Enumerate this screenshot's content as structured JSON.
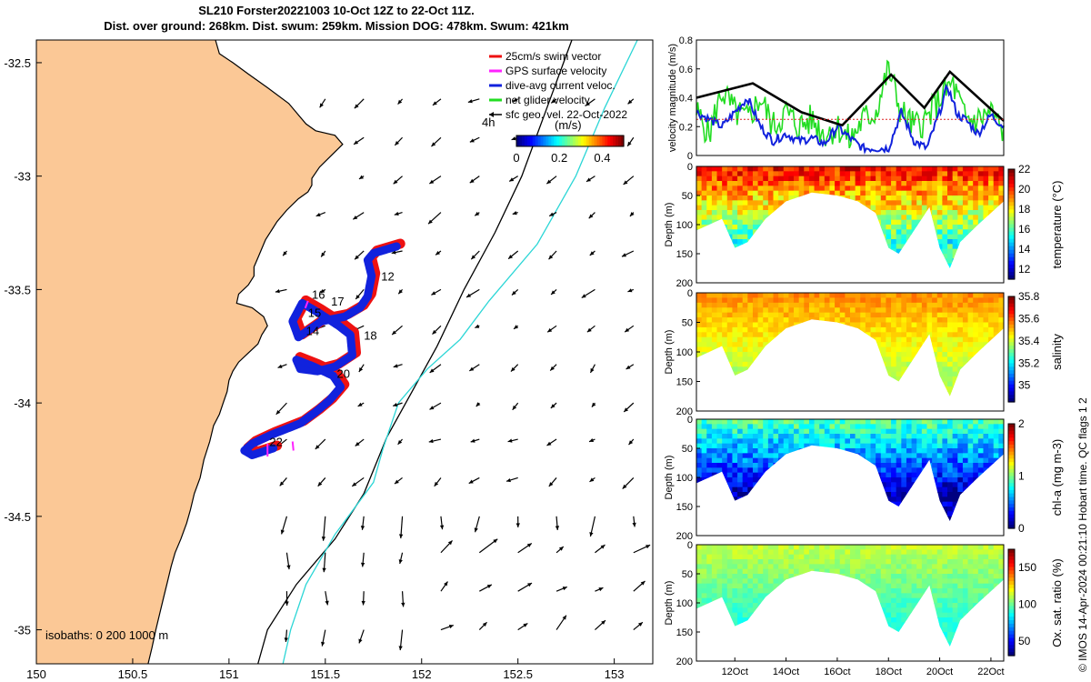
{
  "title": {
    "line1": "SL210 Forster20221003 10-Oct 12Z to 22-Oct 11Z.",
    "line2": "Dist. over ground: 268km. Dist. swum: 259km. Mission DOG: 478km. Swum: 421km"
  },
  "credit": "© IMOS 14-Apr-2024 00:21:10 Hobart time. QC flags 1  2",
  "colors": {
    "land": "#FBC896",
    "coast": "#000000",
    "isobath200": "#000000",
    "isobath1000": "#2BD6D6",
    "track_red": "#EE1111",
    "track_blue": "#1122DD",
    "net_green": "#22DD22",
    "gps_magenta": "#FF22FF",
    "vel_black": "#000000",
    "vel_red": "#DD2222"
  },
  "chart_data": [
    {
      "type": "map",
      "xlim": [
        150,
        153.2
      ],
      "ylim": [
        -35.15,
        -32.4
      ],
      "xticks": [
        150,
        150.5,
        151,
        151.5,
        152,
        152.5,
        153
      ],
      "xtick_labels": [
        "150",
        "150.5",
        "151",
        "151.5",
        "152",
        "152.5",
        "153"
      ],
      "yticks": [
        -32.5,
        -33,
        -33.5,
        -34,
        -34.5,
        -35
      ],
      "ytick_labels": [
        "-32.5",
        "-33",
        "-33.5",
        "-34",
        "-34.5",
        "-35"
      ],
      "legend": {
        "position": "top-right",
        "items": [
          {
            "label": "25cm/s swim vector",
            "color": "#EE1111",
            "marker": "line"
          },
          {
            "label": "GPS surface velocity",
            "color": "#FF22FF",
            "marker": "line"
          },
          {
            "label": "dive-avg current veloc.",
            "color": "#1122DD",
            "marker": "line"
          },
          {
            "label": "net glider velocity",
            "color": "#22DD22",
            "marker": "line"
          },
          {
            "label": "sfc geo. vel. 22-Oct-2022",
            "color": "#000000",
            "marker": "arrow"
          }
        ]
      },
      "colorbar": {
        "label": "(m/s)",
        "ticks": [
          "0",
          "0.2",
          "0.4"
        ],
        "range": [
          0,
          0.5
        ],
        "corner_label": "4h"
      },
      "isobaths_label": "isobaths: 0   200  1000 m",
      "track": [
        [
          151.87,
          -33.31
        ],
        [
          151.75,
          -33.34
        ],
        [
          151.72,
          -33.37
        ],
        [
          151.74,
          -33.44
        ],
        [
          151.72,
          -33.53
        ],
        [
          151.68,
          -33.58
        ],
        [
          151.6,
          -33.62
        ],
        [
          151.48,
          -33.64
        ],
        [
          151.36,
          -33.71
        ],
        [
          151.33,
          -33.64
        ],
        [
          151.38,
          -33.56
        ],
        [
          151.46,
          -33.6
        ],
        [
          151.57,
          -33.66
        ],
        [
          151.63,
          -33.7
        ],
        [
          151.64,
          -33.79
        ],
        [
          151.55,
          -33.84
        ],
        [
          151.46,
          -33.86
        ],
        [
          151.37,
          -33.85
        ],
        [
          151.35,
          -33.81
        ],
        [
          151.44,
          -33.84
        ],
        [
          151.54,
          -33.88
        ],
        [
          151.58,
          -33.93
        ],
        [
          151.52,
          -33.99
        ],
        [
          151.45,
          -34.04
        ],
        [
          151.37,
          -34.09
        ],
        [
          151.22,
          -34.14
        ],
        [
          151.12,
          -34.18
        ],
        [
          151.08,
          -34.21
        ],
        [
          151.12,
          -34.23
        ],
        [
          151.23,
          -34.2
        ]
      ],
      "day_labels": [
        {
          "text": "12",
          "lon": 151.79,
          "lat": -33.46
        },
        {
          "text": "16",
          "lon": 151.43,
          "lat": -33.54
        },
        {
          "text": "17",
          "lon": 151.53,
          "lat": -33.57
        },
        {
          "text": "15",
          "lon": 151.41,
          "lat": -33.62
        },
        {
          "text": "14",
          "lon": 151.4,
          "lat": -33.7
        },
        {
          "text": "18",
          "lon": 151.7,
          "lat": -33.72
        },
        {
          "text": "20",
          "lon": 151.56,
          "lat": -33.89
        },
        {
          "text": "22",
          "lon": 151.21,
          "lat": -34.19
        }
      ],
      "coast": [
        [
          150.93,
          -32.4
        ],
        [
          150.95,
          -32.46
        ],
        [
          151.02,
          -32.5
        ],
        [
          151.1,
          -32.55
        ],
        [
          151.2,
          -32.61
        ],
        [
          151.31,
          -32.68
        ],
        [
          151.35,
          -32.72
        ],
        [
          151.4,
          -32.77
        ],
        [
          151.45,
          -32.8
        ],
        [
          151.55,
          -32.82
        ],
        [
          151.59,
          -32.86
        ],
        [
          151.53,
          -32.91
        ],
        [
          151.47,
          -32.96
        ],
        [
          151.43,
          -33.01
        ],
        [
          151.43,
          -33.04
        ],
        [
          151.41,
          -33.07
        ],
        [
          151.36,
          -33.1
        ],
        [
          151.3,
          -33.15
        ],
        [
          151.25,
          -33.2
        ],
        [
          151.22,
          -33.24
        ],
        [
          151.19,
          -33.28
        ],
        [
          151.17,
          -33.32
        ],
        [
          151.15,
          -33.36
        ],
        [
          151.13,
          -33.4
        ],
        [
          151.13,
          -33.44
        ],
        [
          151.1,
          -33.48
        ],
        [
          151.05,
          -33.52
        ],
        [
          151.04,
          -33.56
        ],
        [
          151.12,
          -33.58
        ],
        [
          151.18,
          -33.62
        ],
        [
          151.2,
          -33.66
        ],
        [
          151.17,
          -33.7
        ],
        [
          151.15,
          -33.74
        ],
        [
          151.1,
          -33.78
        ],
        [
          151.05,
          -33.82
        ],
        [
          151.02,
          -33.86
        ],
        [
          151.0,
          -33.9
        ],
        [
          150.99,
          -33.95
        ],
        [
          150.97,
          -34.0
        ],
        [
          150.95,
          -34.05
        ],
        [
          150.92,
          -34.1
        ],
        [
          150.9,
          -34.17
        ],
        [
          150.87,
          -34.25
        ],
        [
          150.85,
          -34.33
        ],
        [
          150.82,
          -34.4
        ],
        [
          150.8,
          -34.47
        ],
        [
          150.78,
          -34.53
        ],
        [
          150.75,
          -34.6
        ],
        [
          150.72,
          -34.66
        ],
        [
          150.7,
          -34.72
        ],
        [
          150.68,
          -34.79
        ],
        [
          150.66,
          -34.86
        ],
        [
          150.64,
          -34.93
        ],
        [
          150.62,
          -35.0
        ],
        [
          150.6,
          -35.08
        ],
        [
          150.58,
          -35.15
        ]
      ],
      "isobath200": [
        [
          152.78,
          -32.4
        ],
        [
          152.65,
          -32.7
        ],
        [
          152.52,
          -33.0
        ],
        [
          152.38,
          -33.25
        ],
        [
          152.22,
          -33.5
        ],
        [
          152.08,
          -33.75
        ],
        [
          151.95,
          -33.95
        ],
        [
          151.82,
          -34.15
        ],
        [
          151.7,
          -34.4
        ],
        [
          151.55,
          -34.6
        ],
        [
          151.35,
          -34.8
        ],
        [
          151.2,
          -35.0
        ],
        [
          151.15,
          -35.15
        ]
      ],
      "isobath1000": [
        [
          153.12,
          -32.4
        ],
        [
          152.95,
          -32.7
        ],
        [
          152.8,
          -33.0
        ],
        [
          152.6,
          -33.3
        ],
        [
          152.35,
          -33.55
        ],
        [
          152.2,
          -33.72
        ],
        [
          152.03,
          -33.85
        ],
        [
          151.88,
          -34.0
        ],
        [
          151.8,
          -34.2
        ],
        [
          151.75,
          -34.35
        ],
        [
          151.55,
          -34.58
        ],
        [
          151.4,
          -34.8
        ],
        [
          151.32,
          -35.0
        ],
        [
          151.28,
          -35.15
        ]
      ],
      "vectors": {
        "lons": [
          151.3,
          151.5,
          151.7,
          151.9,
          152.1,
          152.3,
          152.5,
          152.7,
          152.9,
          153.1
        ],
        "lats": [
          -35.0,
          -34.83,
          -34.66,
          -34.5,
          -34.33,
          -34.16,
          -34.0,
          -33.83,
          -33.66,
          -33.5,
          -33.33,
          -33.16,
          -33.0,
          -32.83,
          -32.66
        ],
        "note": "surface geostrophic velocity arrows offshore"
      }
    },
    {
      "type": "line",
      "ylabel": "velocity magnitude (m/s)",
      "ylim": [
        0,
        0.8
      ],
      "yticks": [
        0,
        0.2,
        0.4,
        0.6,
        0.8
      ],
      "ytick_labels": [
        "0",
        "0.2",
        "0.4",
        "0.6",
        "0.8"
      ],
      "xlim": [
        10.5,
        22.5
      ],
      "series": [
        {
          "color": "#000000",
          "x": [
            10.5,
            12.7,
            14.6,
            16.0,
            16.2,
            18.1,
            19.4,
            20.4,
            22.5
          ],
          "values": [
            0.4,
            0.5,
            0.3,
            0.22,
            0.21,
            0.56,
            0.33,
            0.58,
            0.24
          ]
        },
        {
          "color": "#1122DD",
          "x": [
            10.5,
            11.5,
            12.0,
            12.5,
            13.0,
            13.5,
            14.0,
            14.5,
            15.0,
            15.5,
            16.0,
            16.5,
            17.0,
            17.5,
            18.0,
            18.5,
            19.0,
            19.5,
            20.0,
            20.3,
            20.7,
            21.0,
            21.5,
            22.0,
            22.5
          ],
          "values": [
            0.3,
            0.2,
            0.3,
            0.4,
            0.2,
            0.1,
            0.15,
            0.1,
            0.12,
            0.08,
            0.2,
            0.12,
            0.05,
            0.05,
            0.05,
            0.3,
            0.1,
            0.05,
            0.3,
            0.48,
            0.28,
            0.25,
            0.15,
            0.28,
            0.2
          ]
        },
        {
          "color": "#22DD22",
          "x": [
            10.5,
            11.0,
            11.5,
            12.0,
            12.5,
            13.0,
            13.5,
            14.0,
            14.5,
            15.0,
            15.5,
            16.0,
            16.5,
            17.0,
            17.5,
            18.0,
            18.5,
            19.0,
            19.5,
            20.0,
            20.5,
            21.0,
            21.5,
            22.0,
            22.5
          ],
          "values": [
            0.3,
            0.15,
            0.45,
            0.3,
            0.25,
            0.4,
            0.2,
            0.3,
            0.2,
            0.25,
            0.15,
            0.2,
            0.1,
            0.25,
            0.3,
            0.6,
            0.3,
            0.2,
            0.25,
            0.4,
            0.5,
            0.25,
            0.25,
            0.3,
            0.15
          ]
        },
        {
          "color": "#DD2222",
          "x": [
            10.5,
            22.5
          ],
          "values": [
            0.25,
            0.25
          ]
        }
      ]
    },
    {
      "type": "heatmap",
      "ylabel": "Depth (m)",
      "clabel": "temperature (°C)",
      "ylim": [
        200,
        0
      ],
      "yticks": [
        0,
        50,
        100,
        150,
        200
      ],
      "ytick_labels": [
        "0",
        "50",
        "100",
        "150",
        "200"
      ],
      "cticks": [
        "22",
        "20",
        "18",
        "16",
        "14",
        "12"
      ],
      "crange": [
        11,
        22
      ],
      "profile_x": [
        10.5,
        11.5,
        12.0,
        12.5,
        13.2,
        14.0,
        15.0,
        16.0,
        16.8,
        17.5,
        18.0,
        18.4,
        19.0,
        19.6,
        20.0,
        20.4,
        20.8,
        21.5,
        22.5
      ],
      "profile_depth": [
        110,
        90,
        140,
        130,
        90,
        60,
        45,
        50,
        60,
        80,
        140,
        150,
        110,
        70,
        140,
        175,
        130,
        100,
        60
      ],
      "upper_value": 20.5,
      "lower_value": 15.5
    },
    {
      "type": "heatmap",
      "ylabel": "Depth (m)",
      "clabel": "salinity",
      "ylim": [
        200,
        0
      ],
      "yticks": [
        0,
        50,
        100,
        150,
        200
      ],
      "ytick_labels": [
        "0",
        "50",
        "100",
        "150",
        "200"
      ],
      "cticks": [
        "35.8",
        "35.6",
        "35.4",
        "35.2",
        "35"
      ],
      "crange": [
        34.85,
        35.8
      ],
      "profile_x": [
        10.5,
        11.5,
        12.0,
        12.5,
        13.2,
        14.0,
        15.0,
        16.0,
        16.8,
        17.5,
        18.0,
        18.4,
        19.0,
        19.6,
        20.0,
        20.4,
        20.8,
        21.5,
        22.5
      ],
      "profile_depth": [
        110,
        90,
        140,
        130,
        90,
        60,
        45,
        50,
        60,
        80,
        140,
        150,
        110,
        70,
        140,
        175,
        130,
        100,
        60
      ],
      "upper_value": 35.55,
      "lower_value": 35.38
    },
    {
      "type": "heatmap",
      "ylabel": "Depth (m)",
      "clabel": "chl-a (mg m-3)",
      "ylim": [
        200,
        0
      ],
      "yticks": [
        0,
        50,
        100,
        150,
        200
      ],
      "ytick_labels": [
        "0",
        "50",
        "100",
        "150",
        "200"
      ],
      "cticks": [
        "2",
        "1",
        "0"
      ],
      "crange": [
        0,
        2
      ],
      "profile_x": [
        10.5,
        11.5,
        12.0,
        12.5,
        13.2,
        14.0,
        15.0,
        16.0,
        16.8,
        17.5,
        18.0,
        18.4,
        19.0,
        19.6,
        20.0,
        20.4,
        20.8,
        21.5,
        22.5
      ],
      "profile_depth": [
        110,
        90,
        140,
        130,
        90,
        60,
        45,
        50,
        60,
        80,
        140,
        150,
        110,
        70,
        140,
        175,
        130,
        100,
        60
      ],
      "upper_value": 0.9,
      "lower_value": 0.1
    },
    {
      "type": "heatmap",
      "ylabel": "Depth (m)",
      "clabel": "Ox. sat. ratio (%)",
      "ylim": [
        200,
        0
      ],
      "yticks": [
        0,
        50,
        100,
        150,
        200
      ],
      "ytick_labels": [
        "0",
        "50",
        "100",
        "150",
        "200"
      ],
      "xticks": [
        12,
        14,
        16,
        18,
        20,
        22
      ],
      "xtick_labels": [
        "12Oct",
        "14Oct",
        "16Oct",
        "18Oct",
        "20Oct",
        "22Oct"
      ],
      "cticks": [
        "150",
        "100",
        "50"
      ],
      "crange": [
        30,
        175
      ],
      "profile_x": [
        10.5,
        11.5,
        12.0,
        12.5,
        13.2,
        14.0,
        15.0,
        16.0,
        16.8,
        17.5,
        18.0,
        18.4,
        19.0,
        19.6,
        20.0,
        20.4,
        20.8,
        21.5,
        22.5
      ],
      "profile_depth": [
        110,
        90,
        140,
        130,
        90,
        60,
        45,
        50,
        60,
        80,
        140,
        150,
        110,
        70,
        140,
        175,
        130,
        100,
        60
      ],
      "upper_value": 112,
      "lower_value": 90
    }
  ]
}
